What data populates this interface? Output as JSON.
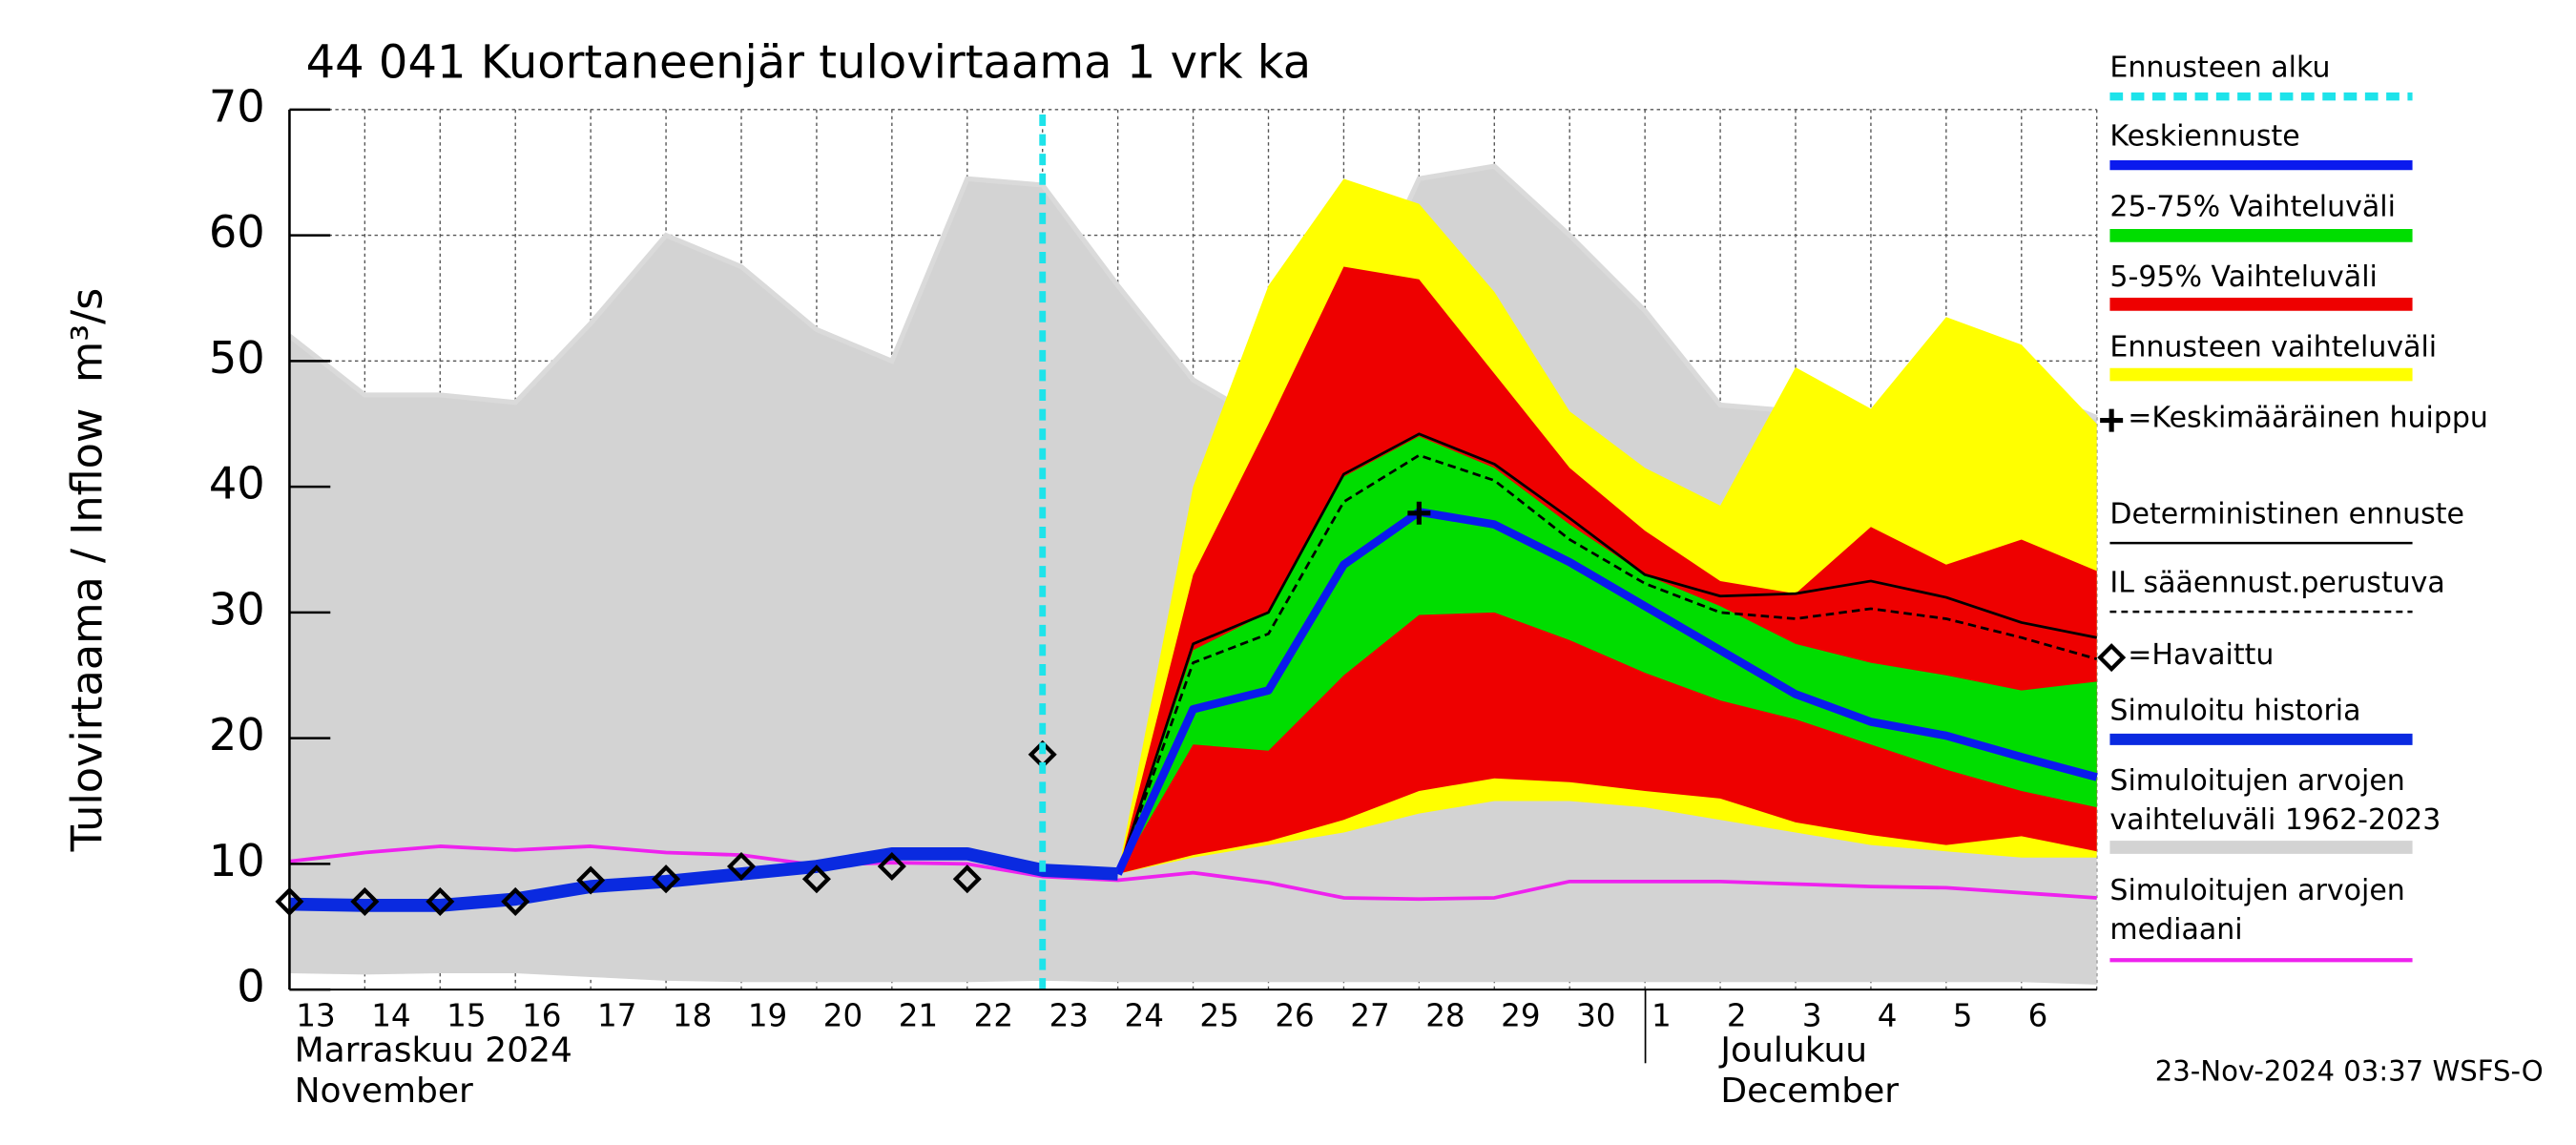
{
  "chart_data": {
    "type": "forecast",
    "title": "44 041 Kuortaneenjär tulovirtaama 1 vrk ka",
    "y_label": "Tulovirtaama / Inflow",
    "y_unit": "m³/s",
    "month_labels": [
      "Marraskuu 2024",
      "November",
      "Joulukuu",
      "December"
    ],
    "footer": "23-Nov-2024 03:37 WSFS-O",
    "categories": [
      "13",
      "14",
      "15",
      "16",
      "17",
      "18",
      "19",
      "20",
      "21",
      "22",
      "23",
      "24",
      "25",
      "26",
      "27",
      "28",
      "29",
      "30",
      "1",
      "2",
      "3",
      "4",
      "5",
      "6",
      null
    ],
    "ylim": [
      0,
      70
    ],
    "yticks": [
      0,
      10,
      20,
      30,
      40,
      50,
      60,
      70
    ],
    "grid": true,
    "legend": "right",
    "series": [
      {
        "name": "Ennusteen alku",
        "color": "#1ee3ea",
        "style": "vline",
        "x": "23"
      },
      {
        "name": "Keskiennuste",
        "color": "#0a1aee",
        "style": "line",
        "values": [
          null,
          null,
          null,
          null,
          null,
          null,
          null,
          null,
          null,
          null,
          null,
          9.2,
          22.3,
          23.8,
          33.8,
          38,
          37,
          34,
          30.5,
          27,
          23.5,
          21.3,
          20.2,
          18.5,
          16.9
        ]
      },
      {
        "name": "25-75% Vaihteluväli",
        "color": "#00dd00",
        "style": "band",
        "upper": [
          null,
          null,
          null,
          null,
          null,
          null,
          null,
          null,
          null,
          null,
          null,
          9.2,
          27,
          30,
          40.8,
          44,
          41.5,
          37,
          33,
          30.5,
          27.5,
          26,
          25,
          23.8,
          24.5
        ],
        "lower": [
          null,
          null,
          null,
          null,
          null,
          null,
          null,
          null,
          null,
          null,
          null,
          9.2,
          19.5,
          19,
          25,
          29.8,
          30,
          27.8,
          25.2,
          23,
          21.5,
          19.5,
          17.5,
          15.8,
          14.5
        ]
      },
      {
        "name": "5-95% Vaihteluväli",
        "color": "#ee0000",
        "style": "band",
        "upper": [
          null,
          null,
          null,
          null,
          null,
          null,
          null,
          null,
          null,
          null,
          null,
          9.2,
          33,
          45,
          57.5,
          56.5,
          49,
          41.5,
          36.5,
          32.5,
          31.5,
          36.8,
          33.8,
          35.8,
          33.3
        ],
        "lower": [
          null,
          null,
          null,
          null,
          null,
          null,
          null,
          null,
          null,
          null,
          null,
          9.2,
          10.7,
          11.8,
          13.5,
          15.8,
          16.8,
          16.5,
          15.8,
          15.2,
          13.3,
          12.3,
          11.5,
          12.2,
          11
        ]
      },
      {
        "name": "Ennusteen vaihteluväli",
        "color": "#ffff00",
        "style": "band",
        "upper": [
          null,
          null,
          null,
          null,
          null,
          null,
          null,
          null,
          null,
          null,
          null,
          9.2,
          40,
          56,
          64.5,
          62.5,
          55.5,
          46,
          41.5,
          38.5,
          49.5,
          46.2,
          53.5,
          51.3,
          45
        ],
        "lower": [
          null,
          null,
          null,
          null,
          null,
          null,
          null,
          null,
          null,
          null,
          null,
          9.2,
          10.5,
          11.5,
          12.5,
          14,
          15,
          15,
          14.5,
          13.5,
          12.5,
          11.5,
          11,
          10.5,
          10.5
        ]
      },
      {
        "name": "=Keskimääräinen huippu",
        "color": "#000000",
        "style": "peak",
        "x": "28",
        "value": 37.9
      },
      {
        "name": "Deterministinen ennuste",
        "color": "#000000",
        "style": "thin",
        "values": [
          null,
          null,
          null,
          null,
          null,
          null,
          null,
          null,
          null,
          null,
          null,
          9.2,
          27.5,
          30,
          41,
          44.2,
          41.8,
          37.5,
          33,
          31.3,
          31.5,
          32.5,
          31.2,
          29.2,
          28
        ]
      },
      {
        "name": "IL sääennust.perustuva",
        "color": "#000000",
        "style": "dashed",
        "values": [
          null,
          null,
          null,
          null,
          null,
          null,
          null,
          null,
          null,
          null,
          null,
          9.2,
          26,
          28.3,
          38.8,
          42.5,
          40.5,
          35.8,
          32.3,
          30,
          29.5,
          30.3,
          29.5,
          28,
          26.3
        ]
      },
      {
        "name": "=Havaittu",
        "color": "#000000",
        "style": "observed",
        "values": [
          7,
          7,
          7,
          7,
          8.7,
          8.8,
          9.8,
          8.8,
          9.8,
          8.8,
          18.7,
          null,
          null,
          null,
          null,
          null,
          null,
          null,
          null,
          null,
          null,
          null,
          null,
          null,
          null
        ]
      },
      {
        "name": "Simuloitu historia",
        "color": "#0a2ae0",
        "style": "thick",
        "values": [
          6.8,
          6.7,
          6.7,
          7.2,
          8.2,
          8.6,
          9.2,
          9.8,
          10.8,
          10.8,
          9.5,
          9.2,
          null,
          null,
          null,
          null,
          null,
          null,
          null,
          null,
          null,
          null,
          null,
          null,
          null
        ]
      },
      {
        "name": "Simuloitujen arvojen vaihteluväli 1962-2023",
        "color": "#d3d3d3",
        "style": "band",
        "upper": [
          52,
          47.3,
          47.3,
          46.7,
          53,
          60,
          57.5,
          52.5,
          50,
          64.5,
          64,
          56,
          48.5,
          45,
          51.5,
          64.5,
          65.5,
          60,
          54,
          46.5,
          46,
          45,
          47.5,
          48,
          45.5
        ],
        "lower": [
          1.3,
          1.2,
          1.3,
          1.3,
          1,
          0.7,
          0.6,
          0.6,
          0.6,
          0.6,
          0.7,
          0.6,
          0.6,
          0.6,
          0.6,
          0.6,
          0.6,
          0.6,
          0.6,
          0.6,
          0.6,
          0.6,
          0.6,
          0.6,
          0.4
        ]
      },
      {
        "name": "Simuloitujen arvojen mediaani",
        "color": "#ee22ee",
        "style": "line",
        "values": [
          10.2,
          10.9,
          11.4,
          11.1,
          11.4,
          10.9,
          10.7,
          9.9,
          10.1,
          10,
          9,
          8.7,
          9.3,
          8.5,
          7.3,
          7.2,
          7.3,
          8.6,
          8.6,
          8.6,
          8.4,
          8.2,
          8.1,
          7.7,
          7.3
        ]
      }
    ]
  }
}
